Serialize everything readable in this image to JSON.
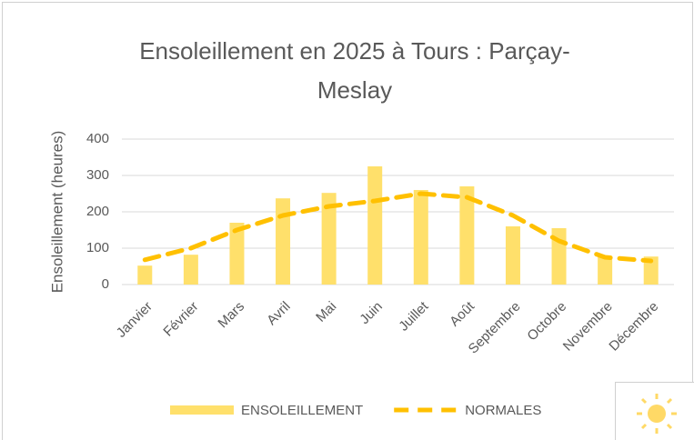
{
  "chart_data": {
    "type": "bar",
    "title": "Ensoleillement en 2025 à Tours : Parçay-Meslay",
    "title_lines": [
      "Ensoleillement en 2025 à Tours : Parçay-",
      "Meslay"
    ],
    "y_label": "Ensoleillement (heures)",
    "categories": [
      "Janvier",
      "Février",
      "Mars",
      "Avril",
      "Mai",
      "Juin",
      "Juillet",
      "Août",
      "Septembre",
      "Octobre",
      "Novembre",
      "Décembre"
    ],
    "series": [
      {
        "name": "ENSOLEILLEMENT",
        "type": "bar",
        "color": "#ffe06b",
        "values": [
          52,
          82,
          170,
          237,
          252,
          325,
          260,
          270,
          160,
          155,
          75,
          77
        ]
      },
      {
        "name": "NORMALES",
        "type": "line",
        "color": "#ffc000",
        "values": [
          68,
          100,
          150,
          190,
          215,
          230,
          250,
          240,
          190,
          120,
          75,
          65
        ]
      }
    ],
    "ylim": [
      0,
      400
    ],
    "yticks": [
      0,
      100,
      200,
      300,
      400
    ],
    "grid": true,
    "legend": "bottom"
  }
}
